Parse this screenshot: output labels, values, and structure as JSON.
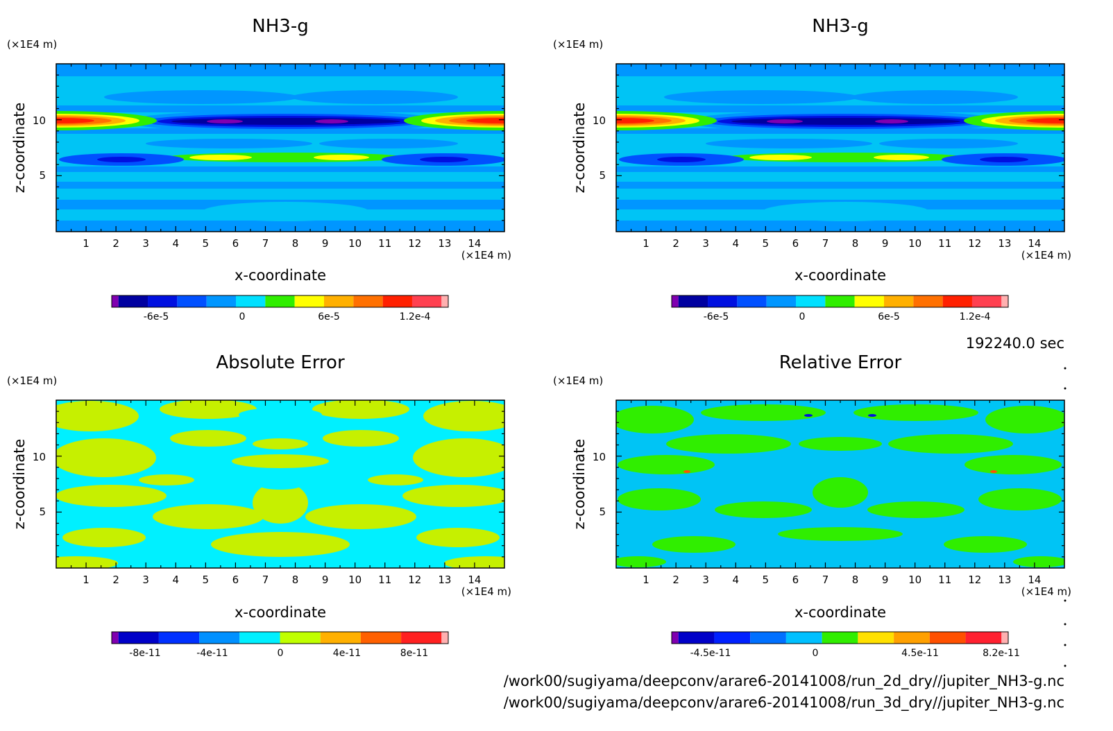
{
  "chart_data": [
    {
      "type": "heatmap",
      "title": "NH3-g",
      "xlabel": "x-coordinate",
      "ylabel": "z-coordinate",
      "x_unit": "(×1E4 m)",
      "y_unit": "(×1E4 m)",
      "xlim": [
        0,
        15
      ],
      "ylim": [
        0,
        15
      ],
      "x_ticks": [
        "1",
        "2",
        "3",
        "4",
        "5",
        "6",
        "7",
        "8",
        "9",
        "10",
        "11",
        "12",
        "13",
        "14"
      ],
      "y_ticks": [
        "5",
        "10"
      ],
      "colorbar": {
        "tick_labels": [
          "-6e-5",
          "0",
          "6e-5",
          "1.2e-4"
        ],
        "colors": [
          "#8000b0",
          "#0000a0",
          "#0010e0",
          "#0050ff",
          "#0096ff",
          "#00e0ff",
          "#30ee00",
          "#ffff00",
          "#ffb000",
          "#ff7000",
          "#ff2000",
          "#ff4050",
          "#ffb0b0"
        ]
      },
      "features": [
        {
          "kind": "band",
          "z": 10.0,
          "x_range": [
            0,
            3
          ],
          "label": "max ≈ 1.2e-4"
        },
        {
          "kind": "band",
          "z": 10.0,
          "x_range": [
            12,
            15
          ],
          "label": "max ≈ 1.2e-4"
        },
        {
          "kind": "band",
          "z": 10.0,
          "x_range": [
            4,
            11
          ],
          "label": "min ≈ -7e-5"
        },
        {
          "kind": "band",
          "z": 6.6,
          "x_range": [
            4,
            11
          ],
          "label": "≈ 6e-5"
        },
        {
          "kind": "band",
          "z": 6.4,
          "x_range": [
            0,
            3
          ],
          "label": "≈ -4e-5"
        },
        {
          "kind": "band",
          "z": 6.4,
          "x_range": [
            12,
            15
          ],
          "label": "≈ -4e-5"
        }
      ]
    },
    {
      "type": "heatmap",
      "title": "NH3-g",
      "xlabel": "x-coordinate",
      "ylabel": "z-coordinate",
      "x_unit": "(×1E4 m)",
      "y_unit": "(×1E4 m)",
      "xlim": [
        0,
        15
      ],
      "ylim": [
        0,
        15
      ],
      "x_ticks": [
        "1",
        "2",
        "3",
        "4",
        "5",
        "6",
        "7",
        "8",
        "9",
        "10",
        "11",
        "12",
        "13",
        "14"
      ],
      "y_ticks": [
        "5",
        "10"
      ],
      "colorbar": {
        "tick_labels": [
          "-6e-5",
          "0",
          "6e-5",
          "1.2e-4"
        ],
        "colors": [
          "#8000b0",
          "#0000a0",
          "#0010e0",
          "#0050ff",
          "#0096ff",
          "#00e0ff",
          "#30ee00",
          "#ffff00",
          "#ffb000",
          "#ff7000",
          "#ff2000",
          "#ff4050",
          "#ffb0b0"
        ]
      }
    },
    {
      "type": "heatmap",
      "title": "Absolute Error",
      "xlabel": "x-coordinate",
      "ylabel": "z-coordinate",
      "x_unit": "(×1E4 m)",
      "y_unit": "(×1E4 m)",
      "xlim": [
        0,
        15
      ],
      "ylim": [
        0,
        15
      ],
      "x_ticks": [
        "1",
        "2",
        "3",
        "4",
        "5",
        "6",
        "7",
        "8",
        "9",
        "10",
        "11",
        "12",
        "13",
        "14"
      ],
      "y_ticks": [
        "5",
        "10"
      ],
      "colorbar": {
        "tick_labels": [
          "-8e-11",
          "-4e-11",
          "0",
          "4e-11",
          "8e-11"
        ],
        "colors": [
          "#8000b0",
          "#0000c8",
          "#0030ff",
          "#0090ff",
          "#00f0ff",
          "#c0ff00",
          "#ffb000",
          "#ff6000",
          "#ff2020",
          "#ffb0b0"
        ]
      },
      "features": [
        {
          "kind": "regions",
          "label": "values between 0 and 2e-11 (yellow-green) and -2e-11 to 0 (cyan)"
        }
      ]
    },
    {
      "type": "heatmap",
      "title": "Relative Error",
      "xlabel": "x-coordinate",
      "ylabel": "z-coordinate",
      "x_unit": "(×1E4 m)",
      "y_unit": "(×1E4 m)",
      "xlim": [
        0,
        15
      ],
      "ylim": [
        0,
        15
      ],
      "x_ticks": [
        "1",
        "2",
        "3",
        "4",
        "5",
        "6",
        "7",
        "8",
        "9",
        "10",
        "11",
        "12",
        "13",
        "14"
      ],
      "y_ticks": [
        "5",
        "10"
      ],
      "colorbar": {
        "tick_labels": [
          "-4.5e-11",
          "0",
          "4.5e-11",
          "8.2e-11"
        ],
        "colors": [
          "#8000b0",
          "#0000c8",
          "#0020ff",
          "#0070ff",
          "#00c0ff",
          "#30ee00",
          "#ffe000",
          "#ffa000",
          "#ff5000",
          "#ff2030",
          "#ffb0b0"
        ]
      },
      "features": [
        {
          "kind": "regions",
          "label": "values mostly between -9e-12 and 9e-12 (light blue and green)"
        }
      ]
    }
  ],
  "time_label": "192240.0 sec",
  "file_paths": [
    "/work00/sugiyama/deepconv/arare6-20141008/run_2d_dry//jupiter_NH3-g.nc",
    "/work00/sugiyama/deepconv/arare6-20141008/run_3d_dry//jupiter_NH3-g.nc"
  ]
}
